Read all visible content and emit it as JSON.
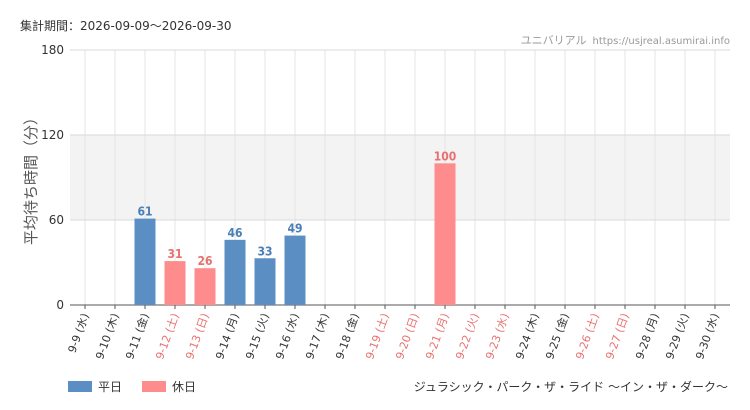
{
  "header": {
    "period": "集計期間：2026-09-09～2026-09-30",
    "site_name": "ユニバリアル",
    "site_url": "https://usjreal.asumirai.info"
  },
  "footer": {
    "attraction": "ジュラシック・パーク・ザ・ライド ～イン・ザ・ダーク～"
  },
  "colors": {
    "weekday": "#5b8fc4",
    "holiday": "#ff8c8c",
    "weekday_label": "#4a7fb5",
    "holiday_label": "#e87070",
    "band": "#f3f3f3"
  },
  "chart_data": {
    "type": "bar",
    "ylabel": "平均待ち時間（分）",
    "ylim": [
      0,
      180
    ],
    "yticks": [
      0,
      60,
      120,
      180
    ],
    "shaded_band": [
      60,
      120
    ],
    "legend": [
      {
        "key": "weekday",
        "label": "平日"
      },
      {
        "key": "holiday",
        "label": "休日"
      }
    ],
    "categories": [
      {
        "label": "9-9 (水)",
        "kind": "weekday",
        "value": null
      },
      {
        "label": "9-10 (木)",
        "kind": "weekday",
        "value": null
      },
      {
        "label": "9-11 (金)",
        "kind": "weekday",
        "value": 61
      },
      {
        "label": "9-12 (土)",
        "kind": "holiday",
        "value": 31
      },
      {
        "label": "9-13 (日)",
        "kind": "holiday",
        "value": 26
      },
      {
        "label": "9-14 (月)",
        "kind": "weekday",
        "value": 46
      },
      {
        "label": "9-15 (火)",
        "kind": "weekday",
        "value": 33
      },
      {
        "label": "9-16 (水)",
        "kind": "weekday",
        "value": 49
      },
      {
        "label": "9-17 (木)",
        "kind": "weekday",
        "value": null
      },
      {
        "label": "9-18 (金)",
        "kind": "weekday",
        "value": null
      },
      {
        "label": "9-19 (土)",
        "kind": "holiday",
        "value": null
      },
      {
        "label": "9-20 (日)",
        "kind": "holiday",
        "value": null
      },
      {
        "label": "9-21 (月)",
        "kind": "holiday",
        "value": 100
      },
      {
        "label": "9-22 (火)",
        "kind": "holiday",
        "value": null
      },
      {
        "label": "9-23 (水)",
        "kind": "holiday",
        "value": null
      },
      {
        "label": "9-24 (木)",
        "kind": "weekday",
        "value": null
      },
      {
        "label": "9-25 (金)",
        "kind": "weekday",
        "value": null
      },
      {
        "label": "9-26 (土)",
        "kind": "holiday",
        "value": null
      },
      {
        "label": "9-27 (日)",
        "kind": "holiday",
        "value": null
      },
      {
        "label": "9-28 (月)",
        "kind": "weekday",
        "value": null
      },
      {
        "label": "9-29 (火)",
        "kind": "weekday",
        "value": null
      },
      {
        "label": "9-30 (水)",
        "kind": "weekday",
        "value": null
      }
    ]
  }
}
